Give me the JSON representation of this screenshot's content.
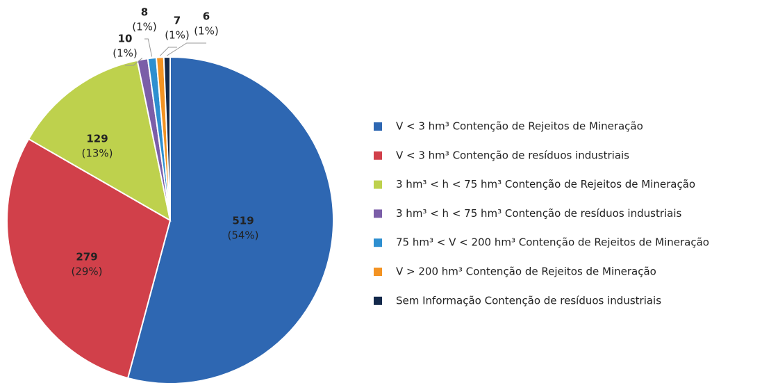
{
  "chart_data": {
    "type": "pie",
    "categories": [
      "V < 3 hm³ Contenção de Rejeitos de Mineração",
      "V < 3 hm³ Contenção de resíduos industriais",
      "3 hm³ < h < 75 hm³ Contenção de Rejeitos de Mineração",
      "3 hm³ < h < 75 hm³ Contenção de resíduos industriais",
      "75 hm³ < V < 200 hm³ Contenção de Rejeitos de Mineração",
      "V > 200 hm³ Contenção de Rejeitos de Mineração",
      "Sem Informação Contenção de resíduos industriais"
    ],
    "values": [
      519,
      279,
      129,
      10,
      8,
      7,
      6
    ],
    "percentages": [
      54,
      29,
      13,
      1,
      1,
      1,
      1
    ],
    "percent_labels": [
      "(54%)",
      "(29%)",
      "(13%)",
      "(1%)",
      "(1%)",
      "(1%)",
      "(1%)"
    ],
    "colors": [
      "#2e67b2",
      "#d1404a",
      "#bed14d",
      "#7b5ea8",
      "#2e8fd0",
      "#f39323",
      "#13294b"
    ],
    "legend": "right"
  }
}
